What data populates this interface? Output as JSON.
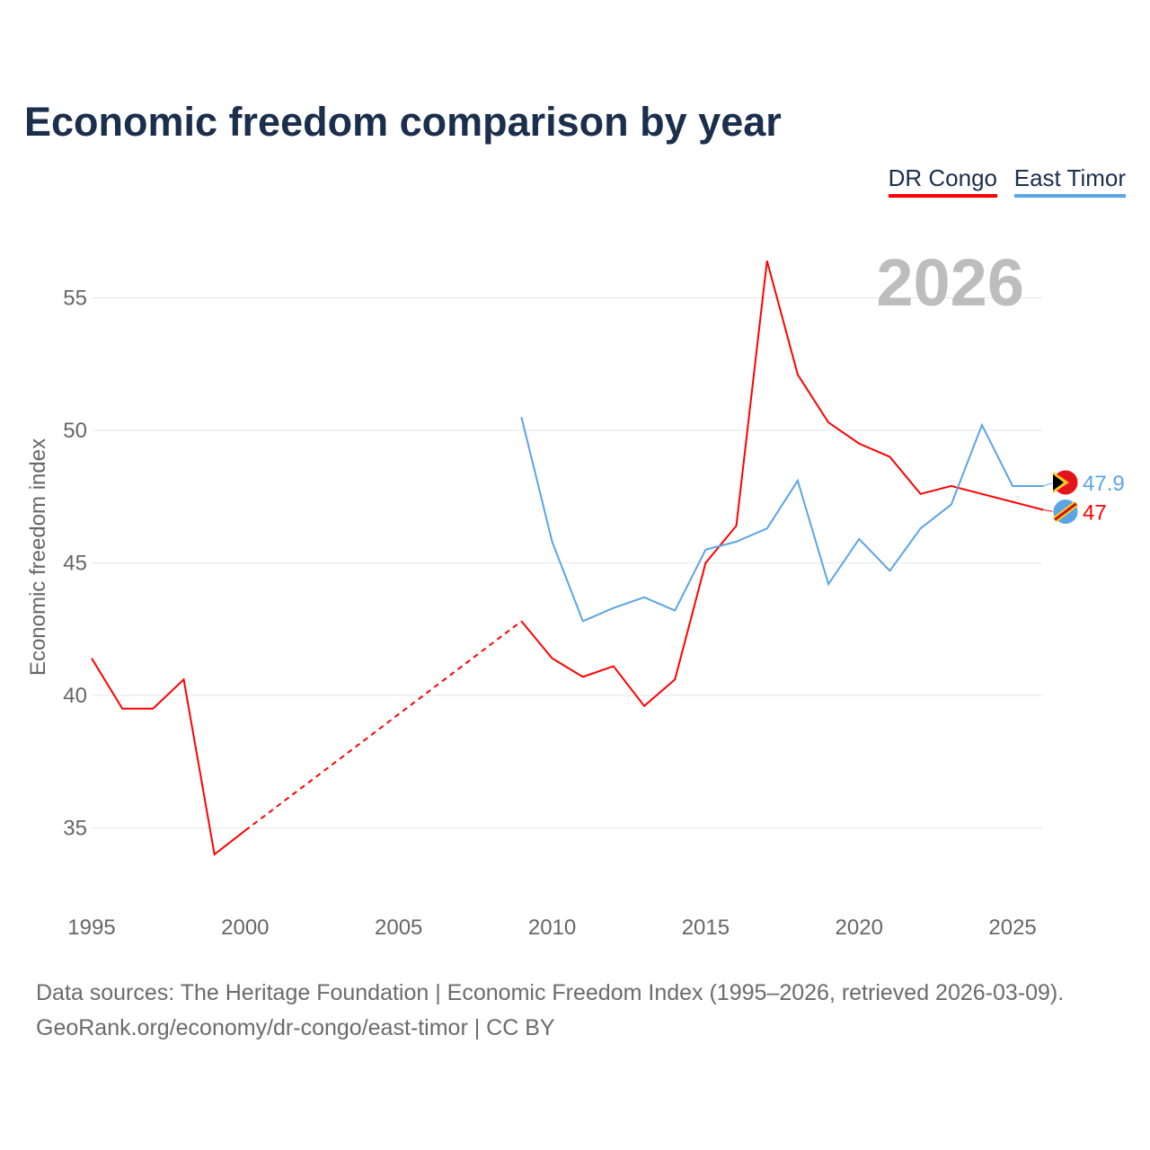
{
  "chart_data": {
    "type": "line",
    "title": "Economic freedom comparison by year",
    "xlabel": "",
    "ylabel": "Economic freedom index",
    "year_watermark": "2026",
    "xlim": [
      1995,
      2026
    ],
    "ylim": [
      33,
      57.5
    ],
    "xticks": [
      "1995",
      "2000",
      "2005",
      "2010",
      "2015",
      "2020",
      "2025"
    ],
    "yticks": [
      "35",
      "40",
      "45",
      "50",
      "55"
    ],
    "grid": true,
    "legend_position": "top-right",
    "series": [
      {
        "name": "DR Congo",
        "color": "#ff0000",
        "end_label": "47",
        "x": [
          1995,
          1996,
          1997,
          1998,
          1999,
          2000,
          2009,
          2010,
          2011,
          2012,
          2013,
          2014,
          2015,
          2016,
          2017,
          2018,
          2019,
          2020,
          2021,
          2022,
          2023,
          2024,
          2025,
          2026
        ],
        "values": [
          41.4,
          39.5,
          39.5,
          40.6,
          34.0,
          34.9,
          42.8,
          41.4,
          40.7,
          41.1,
          39.6,
          40.6,
          45.0,
          46.4,
          56.4,
          52.1,
          50.3,
          49.5,
          49.0,
          47.6,
          47.9,
          47.6,
          47.3,
          47.0
        ],
        "missing_years_interpolated": [
          2001,
          2008
        ]
      },
      {
        "name": "East Timor",
        "color": "#5ba4e6",
        "end_label": "47.9",
        "x": [
          2009,
          2010,
          2011,
          2012,
          2013,
          2014,
          2015,
          2016,
          2017,
          2018,
          2019,
          2020,
          2021,
          2022,
          2023,
          2024,
          2025,
          2026
        ],
        "values": [
          50.5,
          45.8,
          42.8,
          43.3,
          43.7,
          43.2,
          45.5,
          45.8,
          46.3,
          48.1,
          44.2,
          45.9,
          44.7,
          46.3,
          47.2,
          50.2,
          47.9,
          47.9
        ]
      }
    ]
  },
  "footer": {
    "line1": "Data sources: The Heritage Foundation | Economic Freedom Index (1995–2026, retrieved 2026-03-09).",
    "line2": "GeoRank.org/economy/dr-congo/east-timor | CC BY"
  }
}
